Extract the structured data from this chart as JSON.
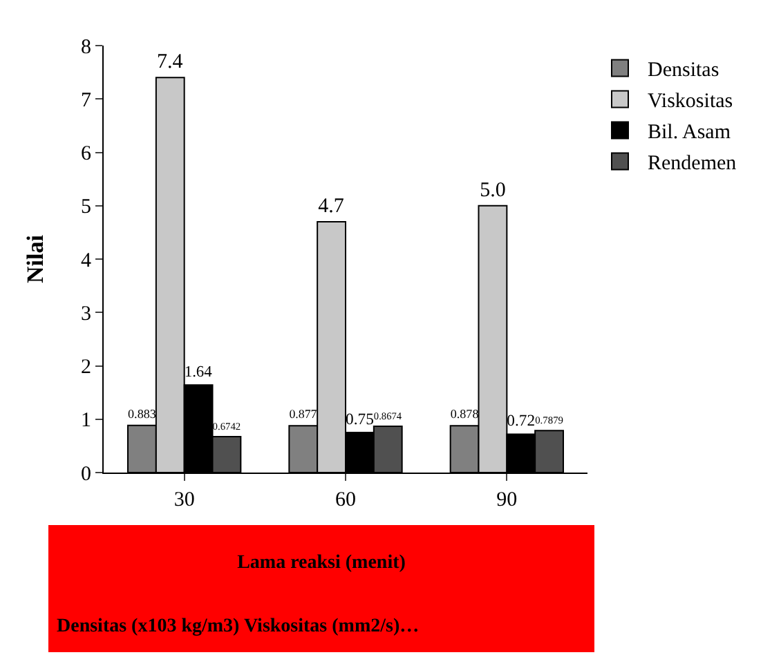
{
  "chart_data": {
    "type": "bar",
    "ylabel": "Nilai",
    "xlabel": "Lama reaksi (menit)",
    "categories": [
      "30",
      "60",
      "90"
    ],
    "series": [
      {
        "name": "Densitas",
        "color": "#808080",
        "values": [
          0.883,
          0.877,
          0.878
        ],
        "value_labels": [
          "0.883",
          "0.877",
          "0.878"
        ]
      },
      {
        "name": "Viskositas",
        "color": "#c8c8c8",
        "values": [
          7.4,
          4.7,
          5.0
        ],
        "value_labels": [
          "7.4",
          "4.7",
          "5.0"
        ]
      },
      {
        "name": "Bil. Asam",
        "color": "#000000",
        "values": [
          1.64,
          0.75,
          0.72
        ],
        "value_labels": [
          "1.64",
          "0.75",
          "0.72"
        ]
      },
      {
        "name": "Rendemen",
        "color": "#505050",
        "values": [
          0.6742,
          0.8674,
          0.7879
        ],
        "value_labels": [
          "0.6742",
          "0.8674",
          "0.7879"
        ]
      }
    ],
    "ylim": [
      0,
      8
    ],
    "yticks": [
      0,
      1,
      2,
      3,
      4,
      5,
      6,
      7,
      8
    ],
    "grid": false,
    "legend": "top right",
    "annotations": [
      "Densitas (x103 kg/m3)   Viskositas (mm2/s)…"
    ]
  }
}
